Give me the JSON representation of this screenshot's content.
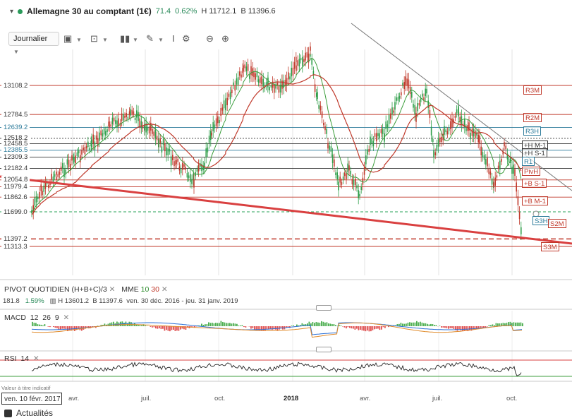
{
  "header": {
    "title": "Allemagne 30 au comptant (1€)",
    "change": "71.4",
    "change_pct": "0.62%",
    "high": "H 11712.1",
    "low": "B 11396.6"
  },
  "toolbar": {
    "period_label": "Journalier"
  },
  "price_axis_labels": [
    "13108.2",
    "12784.5",
    "12639.2",
    "12518.2",
    "12458.5",
    "12385.5",
    "12309.3",
    "12182.4",
    "12054.8",
    "11979.4",
    "11862.6",
    "11699.0",
    "11397.2",
    "11313.3"
  ],
  "level_tags": [
    "R3M",
    "R2M",
    "R3H",
    "+H M-1",
    "+H S-1",
    "R1",
    "PivH",
    "+B S-1",
    "+B M-1",
    "S3H",
    "S2M",
    "S3M"
  ],
  "pivot_panel": {
    "title": "PIVOT",
    "type": "QUOTIDIEN",
    "formula": "(H+B+C)/3",
    "mme_label": "MME",
    "mme_fast": "10",
    "mme_slow": "30",
    "value": "181.8",
    "value_pct": "1.59%",
    "high": "H 13601.2",
    "low": "B 11397.6",
    "range": "ven. 30 déc. 2016 - jeu. 31 janv. 2019"
  },
  "macd_panel": {
    "label": "MACD",
    "p1": "12",
    "p2": "26",
    "p3": "9"
  },
  "rsi_panel": {
    "label": "RSI",
    "period": "14",
    "footnote": "Valeur à titre indicatif"
  },
  "x_axis_labels": [
    "avr.",
    "juil.",
    "oct.",
    "2018",
    "avr.",
    "juil.",
    "oct."
  ],
  "date_box": "ven. 10 févr. 2017",
  "news_label": "Actualités",
  "colors": {
    "positive": "#2a8a5a",
    "candle_up": "#2f9e4a",
    "candle_down": "#c0392b",
    "pivot_red": "#c0392b",
    "pivot_blue": "#2b7a9a"
  }
}
